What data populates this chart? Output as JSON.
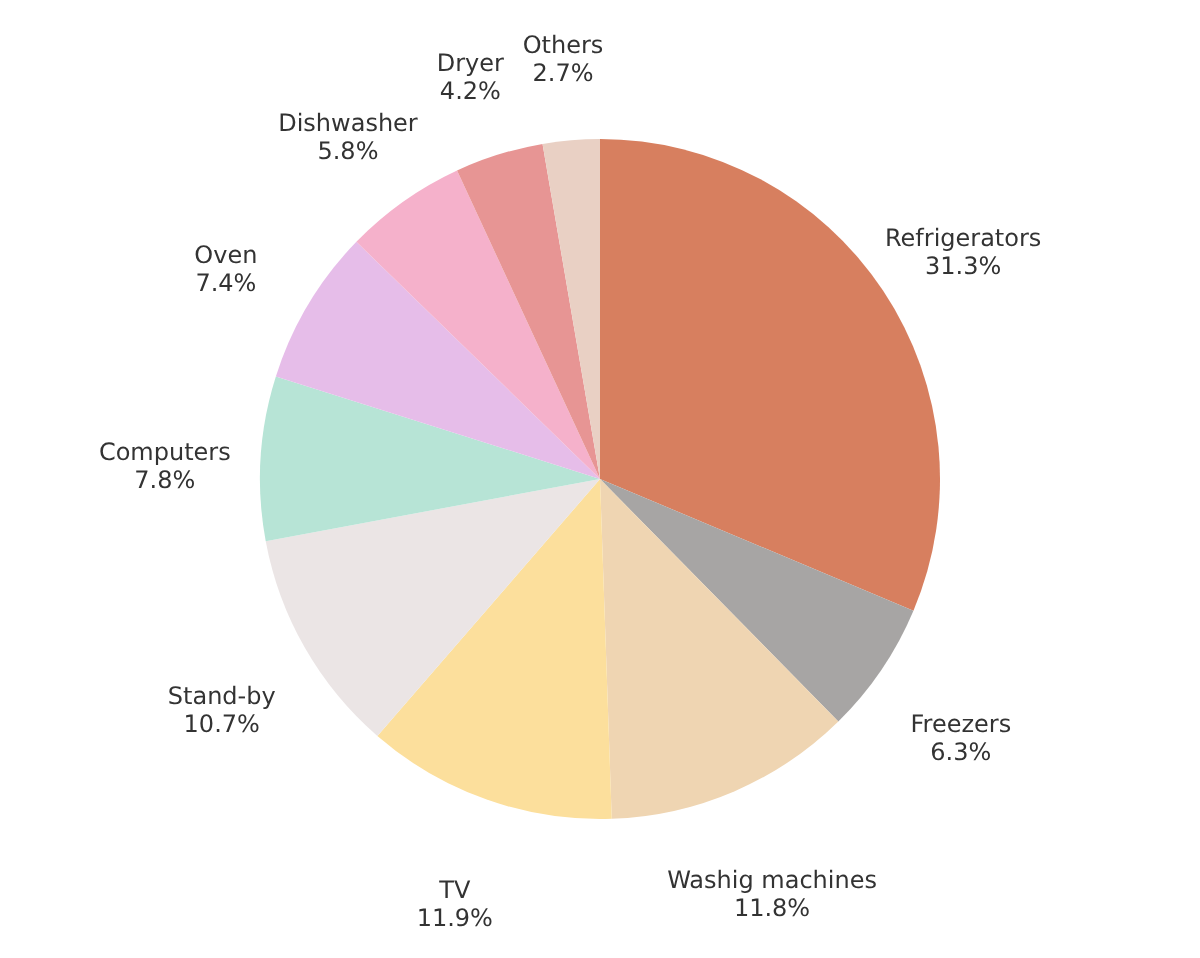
{
  "chart_data": {
    "type": "pie",
    "categories": [
      "Refrigerators",
      "Freezers",
      "Washig machines",
      "TV",
      "Stand-by",
      "Computers",
      "Oven",
      "Dishwasher",
      "Dryer",
      "Others"
    ],
    "values": [
      31.3,
      6.3,
      11.8,
      11.9,
      10.7,
      7.8,
      7.4,
      5.8,
      4.2,
      2.7
    ],
    "value_labels": [
      "31.3%",
      "6.3%",
      "11.8%",
      "11.9%",
      "10.7%",
      "7.8%",
      "7.4%",
      "5.8%",
      "4.2%",
      "2.7%"
    ],
    "colors": [
      "#d77f5f",
      "#a7a5a4",
      "#efd5b2",
      "#fcdf9c",
      "#ebe5e5",
      "#b7e4d6",
      "#e6bde9",
      "#f5b1cb",
      "#e79594",
      "#e9d0c4"
    ],
    "legend": false
  }
}
